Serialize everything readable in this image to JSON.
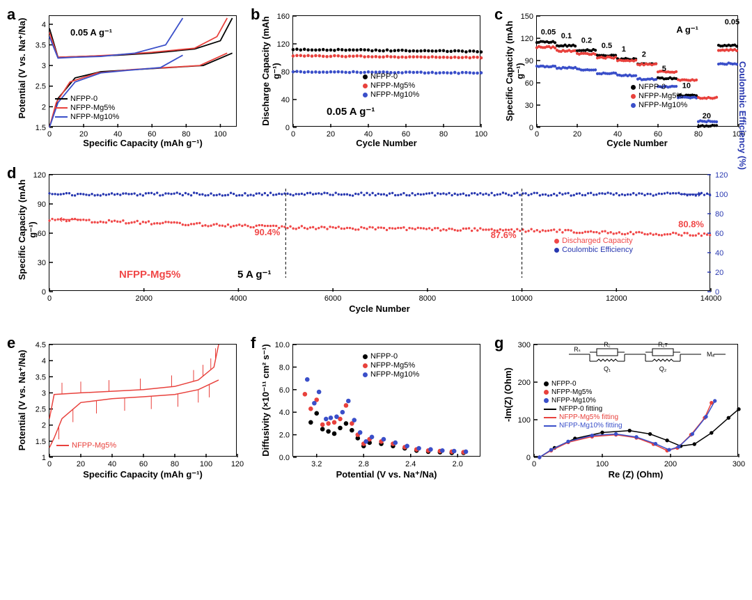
{
  "colors": {
    "nfpp0": "#000000",
    "mg5": "#e8413c",
    "mg10": "#3a4fc9",
    "accent_red": "#f04848",
    "accent_blue": "#2838b0"
  },
  "a": {
    "label": "a",
    "annotation": "0.05 A g⁻¹",
    "xlabel": "Specific Capacity (mAh g⁻¹)",
    "ylabel": "Potential (V vs. Na⁺/Na)",
    "xlim": [
      0,
      110
    ],
    "ylim": [
      1.5,
      4.2
    ],
    "xtick": [
      0,
      20,
      40,
      60,
      80,
      100
    ],
    "ytick": [
      1.5,
      2.0,
      2.5,
      3.0,
      3.5,
      4.0
    ],
    "legend": [
      "NFPP-0",
      "NFPP-Mg5%",
      "NFPP-Mg10%"
    ],
    "curves": {
      "nfpp0_c": [
        [
          0,
          3.9
        ],
        [
          5,
          3.2
        ],
        [
          20,
          3.22
        ],
        [
          40,
          3.25
        ],
        [
          60,
          3.3
        ],
        [
          85,
          3.4
        ],
        [
          100,
          3.6
        ],
        [
          107,
          4.15
        ]
      ],
      "nfpp0_d": [
        [
          107,
          3.3
        ],
        [
          90,
          3.0
        ],
        [
          70,
          2.95
        ],
        [
          50,
          2.9
        ],
        [
          30,
          2.85
        ],
        [
          15,
          2.7
        ],
        [
          5,
          2.2
        ],
        [
          0,
          1.5
        ]
      ],
      "mg5_c": [
        [
          0,
          3.8
        ],
        [
          5,
          3.2
        ],
        [
          20,
          3.22
        ],
        [
          40,
          3.26
        ],
        [
          60,
          3.32
        ],
        [
          85,
          3.42
        ],
        [
          98,
          3.7
        ],
        [
          104,
          4.15
        ]
      ],
      "mg5_d": [
        [
          104,
          3.3
        ],
        [
          88,
          3.0
        ],
        [
          68,
          2.95
        ],
        [
          48,
          2.9
        ],
        [
          28,
          2.82
        ],
        [
          12,
          2.6
        ],
        [
          4,
          2.1
        ],
        [
          0,
          1.5
        ]
      ],
      "mg10_c": [
        [
          0,
          3.7
        ],
        [
          5,
          3.18
        ],
        [
          15,
          3.2
        ],
        [
          30,
          3.22
        ],
        [
          50,
          3.3
        ],
        [
          68,
          3.5
        ],
        [
          78,
          4.15
        ]
      ],
      "mg10_d": [
        [
          78,
          3.25
        ],
        [
          65,
          2.95
        ],
        [
          45,
          2.88
        ],
        [
          30,
          2.82
        ],
        [
          15,
          2.6
        ],
        [
          5,
          2.1
        ],
        [
          0,
          1.5
        ]
      ]
    }
  },
  "b": {
    "label": "b",
    "annotation": "0.05 A g⁻¹",
    "xlabel": "Cycle Number",
    "ylabel": "Discharge Capacity (mAh g⁻¹)",
    "xlim": [
      0,
      100
    ],
    "ylim": [
      0,
      160
    ],
    "xtick": [
      0,
      20,
      40,
      60,
      80,
      100
    ],
    "ytick": [
      0,
      40,
      80,
      120,
      160
    ],
    "legend": [
      "NFPP-0",
      "NFPP-Mg5%",
      "NFPP-Mg10%"
    ],
    "data": {
      "nfpp0": {
        "start": 112,
        "end": 109
      },
      "mg5": {
        "start": 103,
        "end": 100
      },
      "mg10": {
        "start": 80,
        "end": 78
      }
    }
  },
  "c": {
    "label": "c",
    "xlabel": "Cycle Number",
    "ylabel": "Specific Capacity (mAh g⁻¹)",
    "xlim": [
      0,
      100
    ],
    "ylim": [
      0,
      150
    ],
    "xtick": [
      0,
      20,
      40,
      60,
      80,
      100
    ],
    "ytick": [
      0,
      30,
      60,
      90,
      120,
      150
    ],
    "rate_unit": "A g⁻¹",
    "legend": [
      "NFPP-0",
      "NFPP-Mg5%",
      "NFPP-Mg10%"
    ],
    "rates": [
      {
        "label": "0.05",
        "x": 0,
        "n": 10,
        "v": {
          "nfpp0": 115,
          "mg5": 108,
          "mg10": 82
        }
      },
      {
        "label": "0.1",
        "x": 10,
        "n": 10,
        "v": {
          "nfpp0": 110,
          "mg5": 103,
          "mg10": 80
        }
      },
      {
        "label": "0.2",
        "x": 20,
        "n": 10,
        "v": {
          "nfpp0": 104,
          "mg5": 99,
          "mg10": 78
        }
      },
      {
        "label": "0.5",
        "x": 30,
        "n": 10,
        "v": {
          "nfpp0": 97,
          "mg5": 94,
          "mg10": 73
        }
      },
      {
        "label": "1",
        "x": 40,
        "n": 10,
        "v": {
          "nfpp0": 92,
          "mg5": 90,
          "mg10": 70
        }
      },
      {
        "label": "2",
        "x": 50,
        "n": 10,
        "v": {
          "nfpp0": 85,
          "mg5": 85,
          "mg10": 65
        }
      },
      {
        "label": "5",
        "x": 60,
        "n": 10,
        "v": {
          "nfpp0": 66,
          "mg5": 75,
          "mg10": 55
        }
      },
      {
        "label": "10",
        "x": 70,
        "n": 10,
        "v": {
          "nfpp0": 43,
          "mg5": 64,
          "mg10": 40
        }
      },
      {
        "label": "20",
        "x": 80,
        "n": 10,
        "v": {
          "nfpp0": 2,
          "mg5": 40,
          "mg10": 8
        }
      },
      {
        "label": "0.05",
        "x": 90,
        "n": 10,
        "v": {
          "nfpp0": 110,
          "mg5": 104,
          "mg10": 86
        }
      }
    ]
  },
  "d": {
    "label": "d",
    "annotation_sample": "NFPP-Mg5%",
    "annotation_rate": "5 A g⁻¹",
    "xlabel": "Cycle Number",
    "ylabel": "Specific Capacity (mAh g⁻¹)",
    "ylabel2": "Coulombic Efficiency (%)",
    "xlim": [
      0,
      14000
    ],
    "ylim": [
      0,
      120
    ],
    "ylim2": [
      0,
      120
    ],
    "xtick": [
      0,
      2000,
      4000,
      6000,
      8000,
      10000,
      12000,
      14000
    ],
    "ytick": [
      0,
      30,
      60,
      90,
      120
    ],
    "ytick2": [
      0,
      20,
      40,
      60,
      80,
      100,
      120
    ],
    "legend": [
      "Discharged Capacity",
      "Coulombic Efficiency"
    ],
    "marks": [
      {
        "x": 5000,
        "txt": "90.4%"
      },
      {
        "x": 10000,
        "txt": "87.6%"
      },
      {
        "x": 14000,
        "txt": "80.8%"
      }
    ],
    "cap": {
      "start": 74,
      "mid": 66,
      "mid2": 63,
      "end": 58
    },
    "ce": 100
  },
  "e": {
    "label": "e",
    "xlabel": "Specific Capacity (mAh g⁻¹)",
    "ylabel": "Potential (V vs. Na⁺/Na)",
    "xlim": [
      0,
      120
    ],
    "ylim": [
      1.0,
      4.5
    ],
    "xtick": [
      0,
      20,
      40,
      60,
      80,
      100,
      120
    ],
    "ytick": [
      1.0,
      1.5,
      2.0,
      2.5,
      3.0,
      3.5,
      4.0,
      4.5
    ],
    "legend": [
      "NFPP-Mg5%"
    ],
    "charge": [
      [
        0,
        2.2
      ],
      [
        3,
        2.95
      ],
      [
        20,
        3.0
      ],
      [
        40,
        3.05
      ],
      [
        60,
        3.1
      ],
      [
        80,
        3.2
      ],
      [
        95,
        3.4
      ],
      [
        105,
        3.8
      ],
      [
        108,
        4.5
      ]
    ],
    "discharge": [
      [
        108,
        3.4
      ],
      [
        95,
        3.1
      ],
      [
        80,
        2.95
      ],
      [
        60,
        2.88
      ],
      [
        40,
        2.82
      ],
      [
        20,
        2.7
      ],
      [
        8,
        2.2
      ],
      [
        3,
        1.6
      ],
      [
        0,
        1.3
      ]
    ],
    "spikes_c": [
      8,
      20,
      38,
      58,
      78,
      92,
      98,
      103,
      106
    ],
    "spikes_d": [
      102,
      95,
      82,
      65,
      48,
      30,
      15,
      6
    ]
  },
  "f": {
    "label": "f",
    "xlabel": "Potential (V vs. Na⁺/Na)",
    "ylabel": "Diffusivity (×10⁻¹¹ cm² s⁻¹)",
    "xlim": [
      3.4,
      1.8
    ],
    "ylim": [
      0,
      10
    ],
    "xtick": [
      3.2,
      2.8,
      2.4,
      2.0
    ],
    "ytick": [
      0,
      2,
      4,
      6,
      8,
      10
    ],
    "legend": [
      "NFPP-0",
      "NFPP-Mg5%",
      "NFPP-Mg10%"
    ],
    "data": {
      "nfpp0": [
        [
          3.25,
          3.1
        ],
        [
          3.2,
          3.9
        ],
        [
          3.15,
          2.5
        ],
        [
          3.1,
          2.3
        ],
        [
          3.05,
          2.1
        ],
        [
          3.0,
          2.6
        ],
        [
          2.95,
          3.0
        ],
        [
          2.9,
          2.4
        ],
        [
          2.85,
          1.7
        ],
        [
          2.8,
          1.0
        ],
        [
          2.75,
          1.3
        ],
        [
          2.65,
          1.2
        ],
        [
          2.55,
          1.0
        ],
        [
          2.45,
          0.8
        ],
        [
          2.35,
          0.6
        ],
        [
          2.25,
          0.5
        ],
        [
          2.15,
          0.45
        ],
        [
          2.05,
          0.4
        ],
        [
          1.95,
          0.4
        ]
      ],
      "mg5": [
        [
          3.3,
          5.6
        ],
        [
          3.25,
          4.3
        ],
        [
          3.2,
          5.1
        ],
        [
          3.15,
          2.9
        ],
        [
          3.1,
          3.0
        ],
        [
          3.05,
          3.1
        ],
        [
          3.0,
          3.4
        ],
        [
          2.95,
          4.6
        ],
        [
          2.9,
          3.0
        ],
        [
          2.85,
          2.0
        ],
        [
          2.8,
          1.2
        ],
        [
          2.75,
          1.6
        ],
        [
          2.65,
          1.4
        ],
        [
          2.55,
          1.2
        ],
        [
          2.45,
          0.9
        ],
        [
          2.35,
          0.7
        ],
        [
          2.25,
          0.6
        ],
        [
          2.15,
          0.55
        ],
        [
          2.05,
          0.5
        ],
        [
          1.95,
          0.45
        ]
      ],
      "mg10": [
        [
          3.28,
          6.9
        ],
        [
          3.22,
          4.8
        ],
        [
          3.18,
          5.8
        ],
        [
          3.12,
          3.4
        ],
        [
          3.08,
          3.5
        ],
        [
          3.03,
          3.6
        ],
        [
          2.98,
          4.0
        ],
        [
          2.93,
          5.0
        ],
        [
          2.88,
          3.3
        ],
        [
          2.83,
          2.2
        ],
        [
          2.78,
          1.4
        ],
        [
          2.73,
          1.8
        ],
        [
          2.63,
          1.6
        ],
        [
          2.53,
          1.3
        ],
        [
          2.43,
          1.0
        ],
        [
          2.33,
          0.8
        ],
        [
          2.23,
          0.7
        ],
        [
          2.13,
          0.6
        ],
        [
          2.03,
          0.55
        ],
        [
          1.93,
          0.5
        ]
      ]
    }
  },
  "g": {
    "label": "g",
    "xlabel": "Re (Z) (Ohm)",
    "ylabel": "-Im(Z) (Ohm)",
    "xlim": [
      0,
      300
    ],
    "ylim": [
      0,
      300
    ],
    "xtick": [
      0,
      100,
      200,
      300
    ],
    "ytick": [
      0,
      100,
      200,
      300
    ],
    "legend": [
      "NFPP-0",
      "NFPP-Mg5%",
      "NFPP-Mg10%",
      "NFPP-0 fitting",
      "NFPP-Mg5% fitting",
      "NFPP-Mg10% fitting"
    ],
    "circuit": [
      "Rₛ",
      "R꜀",
      "R꜀ᴛ",
      "Q₁",
      "Q₂",
      "Mₐ"
    ],
    "curves": {
      "nfpp0": [
        [
          8,
          0
        ],
        [
          30,
          25
        ],
        [
          60,
          50
        ],
        [
          100,
          66
        ],
        [
          140,
          71
        ],
        [
          170,
          62
        ],
        [
          195,
          45
        ],
        [
          215,
          30
        ],
        [
          235,
          35
        ],
        [
          260,
          65
        ],
        [
          285,
          105
        ],
        [
          300,
          128
        ]
      ],
      "mg5": [
        [
          8,
          0
        ],
        [
          25,
          18
        ],
        [
          50,
          40
        ],
        [
          85,
          55
        ],
        [
          120,
          60
        ],
        [
          150,
          52
        ],
        [
          175,
          35
        ],
        [
          195,
          18
        ],
        [
          210,
          25
        ],
        [
          230,
          60
        ],
        [
          250,
          105
        ],
        [
          260,
          145
        ]
      ],
      "mg10": [
        [
          8,
          0
        ],
        [
          25,
          20
        ],
        [
          50,
          42
        ],
        [
          85,
          58
        ],
        [
          120,
          62
        ],
        [
          150,
          54
        ],
        [
          178,
          36
        ],
        [
          198,
          20
        ],
        [
          212,
          28
        ],
        [
          232,
          62
        ],
        [
          252,
          108
        ],
        [
          265,
          150
        ]
      ]
    }
  }
}
